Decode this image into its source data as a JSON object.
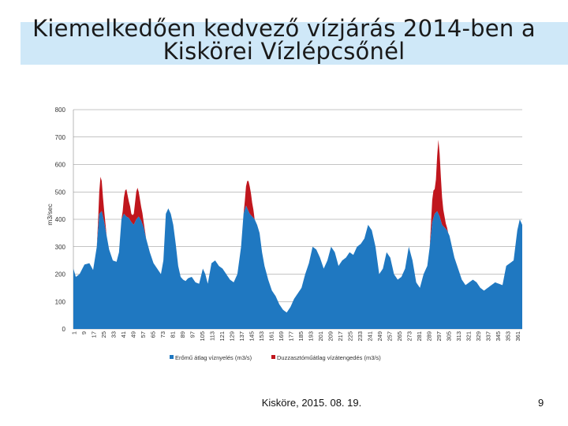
{
  "slide": {
    "title_line1": "Kiemelkedően kedvező vízjárás 2014-ben a",
    "title_line2": "Kiskörei Vízlépcsőnél",
    "footer": "Kisköre, 2015. 08. 19.",
    "page_number": "9"
  },
  "colors": {
    "title_band": "#cfe8f8",
    "series_power": "#1f78c1",
    "series_spill": "#c0161d",
    "grid": "#8a8a8a"
  },
  "chart_data": {
    "type": "area",
    "title": "",
    "xlabel": "",
    "ylabel": "m3/sec",
    "ylim": [
      0,
      800
    ],
    "yticks": [
      0,
      100,
      200,
      300,
      400,
      500,
      600,
      700,
      800
    ],
    "xlim": [
      1,
      365
    ],
    "x_tick_labels": [
      1,
      9,
      17,
      25,
      33,
      41,
      49,
      57,
      65,
      73,
      81,
      89,
      97,
      105,
      113,
      121,
      129,
      137,
      145,
      153,
      161,
      169,
      177,
      185,
      193,
      201,
      209,
      217,
      225,
      233,
      241,
      249,
      257,
      265,
      273,
      281,
      289,
      297,
      305,
      313,
      321,
      329,
      337,
      345,
      353,
      361
    ],
    "grid": true,
    "legend_position": "bottom",
    "series": [
      {
        "name": "Erőmű átlag víznyelés (m3/s)",
        "color": "#1f78c1",
        "x": [
          1,
          3,
          6,
          10,
          14,
          17,
          20,
          22,
          24,
          26,
          28,
          30,
          33,
          36,
          38,
          40,
          42,
          44,
          46,
          48,
          50,
          52,
          54,
          56,
          58,
          60,
          63,
          66,
          69,
          72,
          74,
          76,
          78,
          80,
          82,
          84,
          86,
          88,
          90,
          92,
          94,
          97,
          100,
          103,
          106,
          108,
          110,
          113,
          116,
          119,
          122,
          125,
          128,
          131,
          134,
          137,
          139,
          141,
          142,
          144,
          146,
          148,
          150,
          152,
          154,
          156,
          159,
          162,
          165,
          168,
          171,
          174,
          177,
          180,
          183,
          186,
          189,
          192,
          195,
          198,
          201,
          204,
          207,
          210,
          213,
          216,
          219,
          222,
          225,
          228,
          231,
          234,
          237,
          240,
          243,
          246,
          249,
          252,
          255,
          258,
          261,
          264,
          267,
          270,
          273,
          276,
          279,
          282,
          285,
          288,
          290,
          292,
          294,
          296,
          298,
          300,
          302,
          304,
          306,
          308,
          310,
          313,
          316,
          319,
          322,
          325,
          328,
          331,
          334,
          337,
          340,
          343,
          346,
          349,
          352,
          355,
          358,
          361,
          363,
          365
        ],
        "values": [
          220,
          190,
          200,
          235,
          240,
          215,
          300,
          420,
          430,
          390,
          340,
          290,
          250,
          245,
          280,
          400,
          420,
          410,
          405,
          390,
          380,
          400,
          410,
          395,
          370,
          330,
          280,
          240,
          220,
          200,
          250,
          420,
          440,
          420,
          380,
          310,
          230,
          190,
          180,
          175,
          185,
          190,
          170,
          165,
          220,
          200,
          165,
          240,
          250,
          230,
          220,
          200,
          180,
          170,
          200,
          300,
          420,
          450,
          440,
          420,
          410,
          400,
          380,
          350,
          280,
          230,
          180,
          140,
          120,
          90,
          70,
          60,
          80,
          110,
          130,
          150,
          200,
          240,
          300,
          290,
          260,
          220,
          250,
          300,
          280,
          230,
          250,
          260,
          280,
          270,
          300,
          310,
          330,
          380,
          360,
          300,
          200,
          220,
          280,
          260,
          200,
          180,
          190,
          220,
          300,
          250,
          170,
          150,
          200,
          230,
          300,
          390,
          420,
          430,
          410,
          380,
          370,
          360,
          340,
          300,
          260,
          220,
          180,
          160,
          170,
          180,
          170,
          150,
          140,
          150,
          160,
          170,
          165,
          160,
          230,
          240,
          250,
          360,
          400,
          380
        ]
      },
      {
        "name": "Duzzasztóműátlag vízátengedés (m3/s)",
        "color": "#c0161d",
        "x": [
          1,
          20,
          21,
          22,
          23,
          24,
          25,
          26,
          27,
          28,
          40,
          41,
          42,
          43,
          44,
          45,
          46,
          47,
          48,
          49,
          50,
          51,
          52,
          53,
          54,
          55,
          56,
          57,
          58,
          59,
          60,
          139,
          140,
          141,
          142,
          143,
          144,
          145,
          146,
          147,
          148,
          290,
          291,
          292,
          293,
          294,
          295,
          296,
          297,
          298,
          299,
          300,
          301,
          302,
          303,
          304,
          305,
          365
        ],
        "values": [
          0,
          0,
          30,
          80,
          130,
          110,
          70,
          40,
          20,
          0,
          0,
          20,
          60,
          90,
          100,
          80,
          60,
          50,
          30,
          30,
          40,
          70,
          100,
          110,
          90,
          70,
          50,
          40,
          20,
          10,
          0,
          0,
          30,
          70,
          100,
          110,
          100,
          80,
          50,
          30,
          0,
          0,
          40,
          80,
          100,
          90,
          120,
          200,
          270,
          230,
          160,
          100,
          60,
          40,
          20,
          10,
          0,
          0
        ]
      }
    ]
  }
}
